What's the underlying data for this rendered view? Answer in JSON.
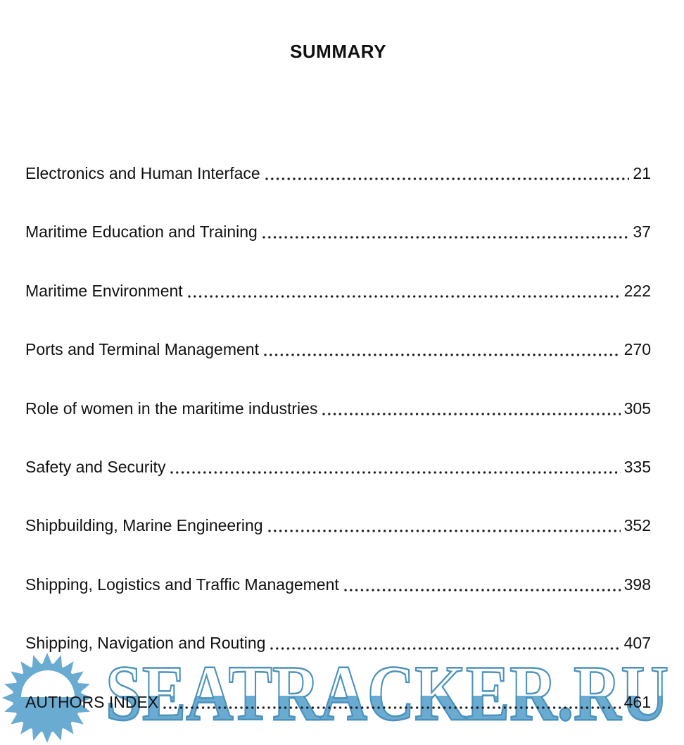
{
  "doc": {
    "title": "SUMMARY"
  },
  "toc": {
    "entries": [
      {
        "title": "Electronics and Human Interface",
        "page": "21"
      },
      {
        "title": "Maritime Education and Training",
        "page": "37"
      },
      {
        "title": "Maritime Environment",
        "page": "222"
      },
      {
        "title": "Ports and Terminal Management",
        "page": "270"
      },
      {
        "title": "Role of women in the maritime industries",
        "page": "305"
      },
      {
        "title": "Safety and Security",
        "page": "335"
      },
      {
        "title": "Shipbuilding, Marine Engineering",
        "page": "352"
      },
      {
        "title": "Shipping, Logistics and Traffic Management",
        "page": "398"
      },
      {
        "title": "Shipping, Navigation and Routing",
        "page": "407"
      },
      {
        "title": "AUTHORS INDEX",
        "page": "461"
      }
    ]
  },
  "watermark": {
    "text": "SEATRACKER.RU",
    "fill_color": "#6aabd2",
    "stroke_color": "#4d92bd",
    "logo": "sunrise-sunburst-icon"
  },
  "colors": {
    "background": "#ffffff",
    "text": "#111111"
  }
}
